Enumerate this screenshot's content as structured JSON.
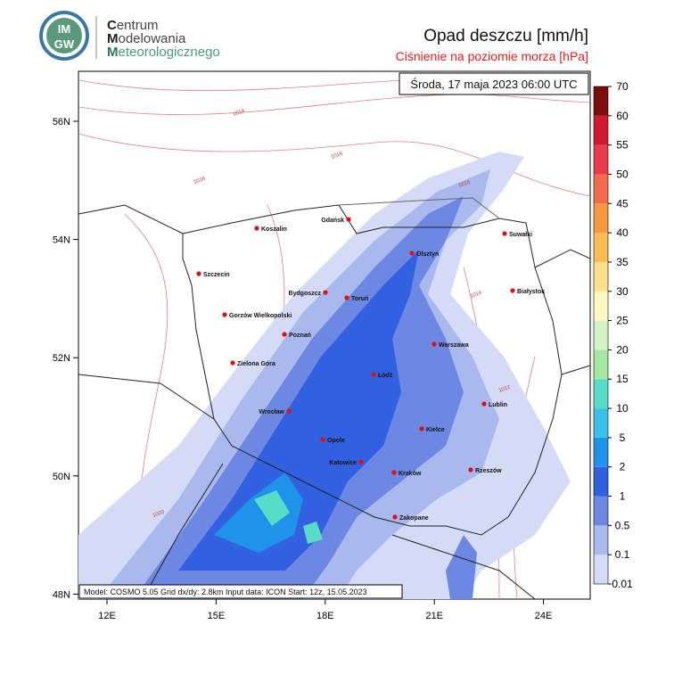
{
  "logo": {
    "badge_top": "IM",
    "badge_bottom": "GW",
    "words": [
      "Centrum",
      "Modelowania",
      "Meteorologicznego"
    ]
  },
  "title": "Opad deszczu [mm/h]",
  "subtitle": "Ciśnienie na poziomie morza [hPa]",
  "date": "Środa, 17 maja 2023 06:00 UTC",
  "footer": "Model: COSMO 5.05  Grid dx/dy: 2.8km  Input data: ICON  Start: 12z, 15.05.2023",
  "lat_ticks": [
    {
      "value": 56,
      "label": "56N"
    },
    {
      "value": 54,
      "label": "54N"
    },
    {
      "value": 52,
      "label": "52N"
    },
    {
      "value": 50,
      "label": "50N"
    },
    {
      "value": 48,
      "label": "48N"
    }
  ],
  "lon_ticks": [
    {
      "value": 12,
      "label": "12E"
    },
    {
      "value": 15,
      "label": "15E"
    },
    {
      "value": 18,
      "label": "18E"
    },
    {
      "value": 21,
      "label": "21E"
    },
    {
      "value": 24,
      "label": "24E"
    }
  ],
  "cities": [
    "Koszalin",
    "Gdańsk",
    "Olsztyn",
    "Suwałki",
    "Szczecin",
    "Bydgoszcz",
    "Toruń",
    "Białystok",
    "Gorzów Wielkopolski",
    "Poznań",
    "Warszawa",
    "Zielona Góra",
    "Łódź",
    "Lublin",
    "Wrocław",
    "Kielce",
    "Opole",
    "Katowice",
    "Kraków",
    "Rzeszów",
    "Zakopane"
  ],
  "isobar_labels": [
    "1014",
    "1016",
    "1018",
    "1016",
    "1014",
    "1020",
    "1012"
  ],
  "colorbar": {
    "ticks": [
      0.01,
      0.1,
      0.5,
      1,
      2,
      5,
      10,
      15,
      20,
      25,
      30,
      35,
      40,
      45,
      50,
      55,
      60,
      70
    ],
    "colors": [
      "#d3dbf6",
      "#a9b8ed",
      "#6d88e2",
      "#3160e0",
      "#1f92e9",
      "#38c2ea",
      "#58dcc8",
      "#a4e7a2",
      "#d4f2c4",
      "#fff8c2",
      "#fde08c",
      "#fbba52",
      "#f7973e",
      "#f26b4b",
      "#e83b4b",
      "#d0192f",
      "#7c0b0b"
    ]
  }
}
